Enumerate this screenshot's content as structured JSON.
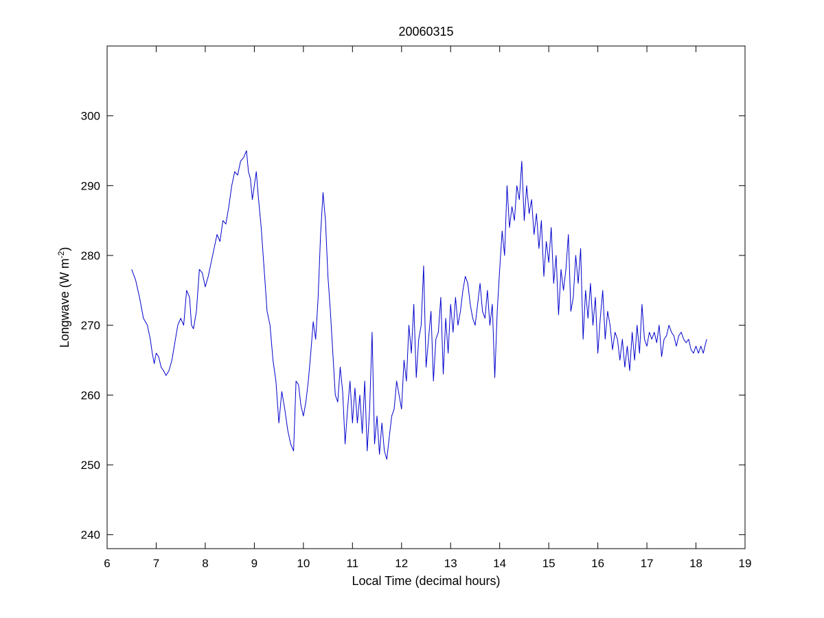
{
  "chart_data": {
    "type": "line",
    "title": "20060315",
    "xlabel": "Local Time (decimal hours)",
    "ylabel_main": "Longwave (W m",
    "ylabel_sup": "-2",
    "ylabel_close": ")",
    "xlim": [
      6,
      19
    ],
    "ylim": [
      238,
      310
    ],
    "xticks": [
      6,
      7,
      8,
      9,
      10,
      11,
      12,
      13,
      14,
      15,
      16,
      17,
      18,
      19
    ],
    "yticks": [
      240,
      250,
      260,
      270,
      280,
      290,
      300
    ],
    "grid": false,
    "series": [
      {
        "color": "#0000cc",
        "points": [
          [
            6.5,
            278.0
          ],
          [
            6.58,
            276.5
          ],
          [
            6.66,
            274.0
          ],
          [
            6.74,
            271.0
          ],
          [
            6.82,
            270.0
          ],
          [
            6.88,
            268.0
          ],
          [
            6.92,
            266.0
          ],
          [
            6.96,
            264.5
          ],
          [
            7.0,
            266.0
          ],
          [
            7.05,
            265.5
          ],
          [
            7.1,
            264.0
          ],
          [
            7.15,
            263.5
          ],
          [
            7.2,
            262.8
          ],
          [
            7.26,
            263.5
          ],
          [
            7.32,
            265.0
          ],
          [
            7.38,
            267.5
          ],
          [
            7.44,
            270.0
          ],
          [
            7.5,
            271.0
          ],
          [
            7.56,
            270.0
          ],
          [
            7.62,
            275.0
          ],
          [
            7.68,
            274.0
          ],
          [
            7.72,
            270.0
          ],
          [
            7.76,
            269.5
          ],
          [
            7.82,
            272.0
          ],
          [
            7.88,
            278.0
          ],
          [
            7.94,
            277.5
          ],
          [
            8.0,
            275.5
          ],
          [
            8.06,
            277.0
          ],
          [
            8.12,
            279.0
          ],
          [
            8.18,
            281.0
          ],
          [
            8.24,
            283.0
          ],
          [
            8.3,
            282.0
          ],
          [
            8.36,
            285.0
          ],
          [
            8.42,
            284.5
          ],
          [
            8.48,
            287.0
          ],
          [
            8.54,
            290.0
          ],
          [
            8.6,
            292.0
          ],
          [
            8.66,
            291.5
          ],
          [
            8.72,
            293.5
          ],
          [
            8.78,
            294.0
          ],
          [
            8.84,
            295.0
          ],
          [
            8.88,
            292.0
          ],
          [
            8.92,
            291.0
          ],
          [
            8.96,
            288.0
          ],
          [
            9.0,
            290.0
          ],
          [
            9.04,
            292.0
          ],
          [
            9.08,
            288.5
          ],
          [
            9.14,
            284.0
          ],
          [
            9.2,
            278.0
          ],
          [
            9.26,
            272.0
          ],
          [
            9.32,
            270.0
          ],
          [
            9.38,
            265.0
          ],
          [
            9.44,
            262.0
          ],
          [
            9.5,
            256.0
          ],
          [
            9.56,
            260.5
          ],
          [
            9.62,
            258.0
          ],
          [
            9.68,
            255.0
          ],
          [
            9.74,
            253.0
          ],
          [
            9.8,
            252.0
          ],
          [
            9.85,
            262.0
          ],
          [
            9.9,
            261.5
          ],
          [
            9.95,
            258.5
          ],
          [
            10.0,
            257.0
          ],
          [
            10.05,
            259.0
          ],
          [
            10.1,
            262.0
          ],
          [
            10.15,
            266.0
          ],
          [
            10.2,
            270.5
          ],
          [
            10.25,
            268.0
          ],
          [
            10.3,
            274.0
          ],
          [
            10.35,
            283.0
          ],
          [
            10.4,
            289.0
          ],
          [
            10.45,
            285.0
          ],
          [
            10.5,
            277.0
          ],
          [
            10.55,
            272.0
          ],
          [
            10.6,
            266.0
          ],
          [
            10.65,
            260.0
          ],
          [
            10.7,
            259.0
          ],
          [
            10.75,
            264.0
          ],
          [
            10.8,
            260.5
          ],
          [
            10.85,
            253.0
          ],
          [
            10.9,
            258.0
          ],
          [
            10.95,
            262.0
          ],
          [
            11.0,
            256.0
          ],
          [
            11.05,
            261.0
          ],
          [
            11.1,
            256.0
          ],
          [
            11.15,
            260.0
          ],
          [
            11.2,
            254.5
          ],
          [
            11.25,
            262.0
          ],
          [
            11.3,
            252.0
          ],
          [
            11.35,
            258.0
          ],
          [
            11.4,
            269.0
          ],
          [
            11.45,
            253.0
          ],
          [
            11.5,
            257.0
          ],
          [
            11.55,
            251.5
          ],
          [
            11.6,
            256.0
          ],
          [
            11.65,
            252.0
          ],
          [
            11.7,
            250.8
          ],
          [
            11.75,
            254.0
          ],
          [
            11.8,
            257.0
          ],
          [
            11.85,
            258.0
          ],
          [
            11.9,
            262.0
          ],
          [
            11.95,
            260.0
          ],
          [
            12.0,
            258.0
          ],
          [
            12.05,
            265.0
          ],
          [
            12.1,
            262.0
          ],
          [
            12.15,
            270.0
          ],
          [
            12.2,
            266.0
          ],
          [
            12.25,
            273.0
          ],
          [
            12.3,
            262.5
          ],
          [
            12.35,
            268.0
          ],
          [
            12.4,
            270.0
          ],
          [
            12.45,
            278.5
          ],
          [
            12.5,
            264.0
          ],
          [
            12.55,
            268.0
          ],
          [
            12.6,
            272.0
          ],
          [
            12.65,
            262.0
          ],
          [
            12.7,
            268.0
          ],
          [
            12.75,
            269.0
          ],
          [
            12.8,
            274.0
          ],
          [
            12.85,
            263.0
          ],
          [
            12.9,
            271.0
          ],
          [
            12.95,
            266.0
          ],
          [
            13.0,
            273.0
          ],
          [
            13.05,
            269.0
          ],
          [
            13.1,
            274.0
          ],
          [
            13.15,
            270.0
          ],
          [
            13.2,
            272.0
          ],
          [
            13.25,
            275.0
          ],
          [
            13.3,
            277.0
          ],
          [
            13.35,
            276.0
          ],
          [
            13.4,
            273.0
          ],
          [
            13.45,
            271.0
          ],
          [
            13.5,
            270.0
          ],
          [
            13.55,
            273.0
          ],
          [
            13.6,
            276.0
          ],
          [
            13.65,
            272.0
          ],
          [
            13.7,
            271.0
          ],
          [
            13.75,
            275.0
          ],
          [
            13.8,
            270.0
          ],
          [
            13.85,
            273.0
          ],
          [
            13.9,
            262.5
          ],
          [
            13.95,
            272.0
          ],
          [
            14.0,
            278.0
          ],
          [
            14.05,
            283.5
          ],
          [
            14.1,
            280.0
          ],
          [
            14.15,
            290.0
          ],
          [
            14.2,
            284.0
          ],
          [
            14.25,
            287.0
          ],
          [
            14.3,
            285.0
          ],
          [
            14.35,
            290.0
          ],
          [
            14.4,
            288.0
          ],
          [
            14.45,
            293.5
          ],
          [
            14.5,
            285.0
          ],
          [
            14.55,
            290.0
          ],
          [
            14.6,
            286.0
          ],
          [
            14.65,
            288.0
          ],
          [
            14.7,
            283.0
          ],
          [
            14.75,
            286.0
          ],
          [
            14.8,
            281.0
          ],
          [
            14.85,
            285.0
          ],
          [
            14.9,
            277.0
          ],
          [
            14.95,
            282.0
          ],
          [
            15.0,
            279.0
          ],
          [
            15.05,
            284.0
          ],
          [
            15.1,
            276.0
          ],
          [
            15.15,
            280.0
          ],
          [
            15.2,
            271.5
          ],
          [
            15.25,
            278.0
          ],
          [
            15.3,
            275.0
          ],
          [
            15.35,
            278.0
          ],
          [
            15.4,
            283.0
          ],
          [
            15.45,
            272.0
          ],
          [
            15.5,
            274.0
          ],
          [
            15.55,
            280.0
          ],
          [
            15.6,
            276.0
          ],
          [
            15.65,
            281.0
          ],
          [
            15.7,
            268.0
          ],
          [
            15.75,
            275.0
          ],
          [
            15.8,
            271.0
          ],
          [
            15.85,
            276.0
          ],
          [
            15.9,
            270.0
          ],
          [
            15.95,
            274.0
          ],
          [
            16.0,
            266.0
          ],
          [
            16.05,
            271.0
          ],
          [
            16.1,
            275.0
          ],
          [
            16.15,
            268.0
          ],
          [
            16.2,
            272.0
          ],
          [
            16.25,
            270.0
          ],
          [
            16.3,
            266.5
          ],
          [
            16.35,
            269.0
          ],
          [
            16.4,
            268.0
          ],
          [
            16.45,
            265.0
          ],
          [
            16.5,
            268.0
          ],
          [
            16.55,
            264.0
          ],
          [
            16.6,
            267.0
          ],
          [
            16.65,
            263.5
          ],
          [
            16.7,
            269.0
          ],
          [
            16.75,
            265.0
          ],
          [
            16.8,
            270.0
          ],
          [
            16.85,
            266.0
          ],
          [
            16.9,
            273.0
          ],
          [
            16.95,
            268.0
          ],
          [
            17.0,
            267.0
          ],
          [
            17.05,
            269.0
          ],
          [
            17.1,
            268.0
          ],
          [
            17.15,
            269.0
          ],
          [
            17.2,
            267.5
          ],
          [
            17.25,
            270.0
          ],
          [
            17.3,
            265.5
          ],
          [
            17.35,
            268.0
          ],
          [
            17.4,
            268.5
          ],
          [
            17.45,
            270.0
          ],
          [
            17.5,
            269.0
          ],
          [
            17.55,
            268.5
          ],
          [
            17.6,
            267.0
          ],
          [
            17.65,
            268.5
          ],
          [
            17.7,
            269.0
          ],
          [
            17.75,
            268.0
          ],
          [
            17.8,
            267.5
          ],
          [
            17.85,
            268.0
          ],
          [
            17.9,
            266.5
          ],
          [
            17.95,
            266.0
          ],
          [
            18.0,
            267.0
          ],
          [
            18.05,
            266.0
          ],
          [
            18.1,
            267.0
          ],
          [
            18.15,
            266.0
          ],
          [
            18.2,
            267.5
          ],
          [
            18.22,
            268.0
          ]
        ]
      }
    ]
  }
}
